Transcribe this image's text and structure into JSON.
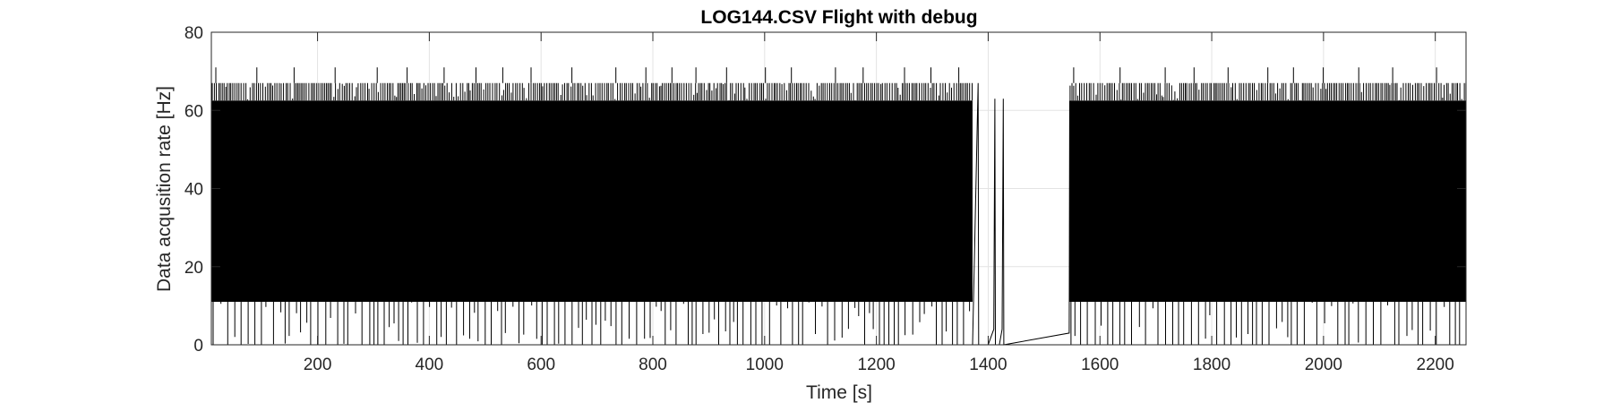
{
  "chart_data": {
    "type": "line",
    "title": "LOG144.CSV  Flight with debug",
    "xlabel": "Time [s]",
    "ylabel": "Data acqusition rate [Hz]",
    "xlim": [
      10,
      2255
    ],
    "ylim": [
      0,
      80
    ],
    "x_ticks": [
      200,
      400,
      600,
      800,
      1000,
      1200,
      1400,
      1600,
      1800,
      2000,
      2200
    ],
    "y_ticks": [
      0,
      20,
      40,
      60,
      80
    ],
    "grid": true,
    "series": [
      {
        "name": "Data acquisition rate",
        "description": "Rapidly alternating sample rate; dense band mostly between ~11 and ~62.5 Hz with spikes down to 0 and up to ~67 Hz",
        "dense_segments": [
          {
            "x_start": 10,
            "x_end": 1372,
            "band_low": 11,
            "band_high": 62.5,
            "spike_low": 0,
            "spike_high": 67
          },
          {
            "x_start": 1545,
            "x_end": 2255,
            "band_low": 11,
            "band_high": 62.5,
            "spike_low": 0,
            "spike_high": 67
          }
        ],
        "gap_points": [
          {
            "x": 1372,
            "y": 0
          },
          {
            "x": 1382,
            "y": 67
          },
          {
            "x": 1383,
            "y": 0
          },
          {
            "x": 1385,
            "y": 0
          },
          {
            "x": 1400,
            "y": 0
          },
          {
            "x": 1410,
            "y": 4
          },
          {
            "x": 1412,
            "y": 63
          },
          {
            "x": 1413,
            "y": 0
          },
          {
            "x": 1420,
            "y": 0
          },
          {
            "x": 1425,
            "y": 4
          },
          {
            "x": 1427,
            "y": 63
          },
          {
            "x": 1428,
            "y": 0
          },
          {
            "x": 1545,
            "y": 3
          },
          {
            "x": 1546,
            "y": 59
          }
        ]
      }
    ]
  }
}
